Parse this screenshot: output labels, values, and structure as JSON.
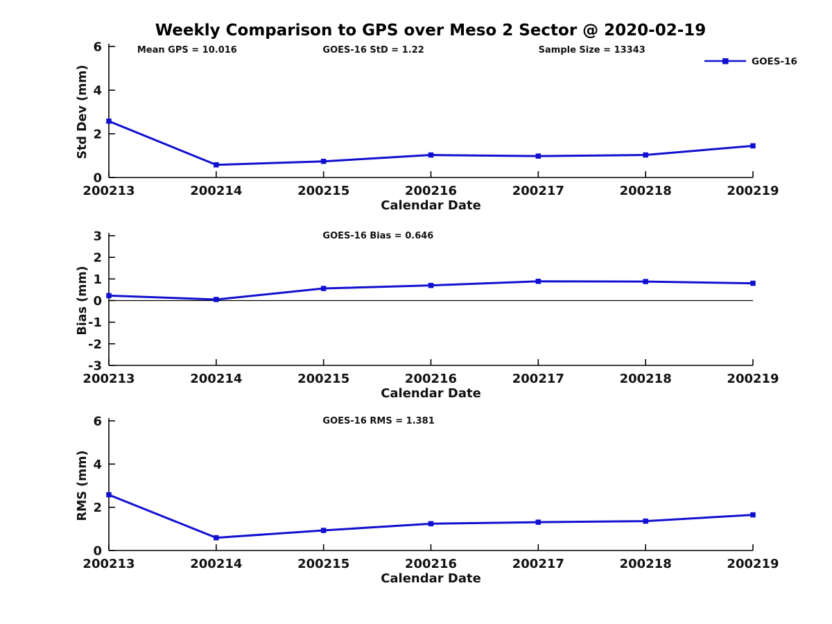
{
  "title": "Weekly Comparison to GPS over Meso 2 Sector @ 2020-02-19",
  "legend": {
    "label": "GOES-16",
    "position": "top-right"
  },
  "colors": {
    "series": "#1010d0",
    "axis": "#000000",
    "background": "#ffffff"
  },
  "chart_data": [
    {
      "type": "line",
      "title": "",
      "annotations": [
        "Mean GPS = 10.016",
        "GOES-16 StD = 1.22",
        "Sample Size = 13343"
      ],
      "categories": [
        "200213",
        "200214",
        "200215",
        "200216",
        "200217",
        "200218",
        "200219"
      ],
      "series": [
        {
          "name": "GOES-16",
          "values": [
            2.58,
            0.58,
            0.74,
            1.03,
            0.98,
            1.03,
            1.45
          ]
        }
      ],
      "xlabel": "Calendar Date",
      "ylabel": "Std Dev (mm)",
      "ylim": [
        0,
        6
      ],
      "yticks": [
        0,
        2,
        4,
        6
      ],
      "grid": false,
      "zero_line": false,
      "legend_position": "top-right",
      "marker": "square"
    },
    {
      "type": "line",
      "title": "",
      "annotations": [
        "GOES-16 Bias  = 0.646"
      ],
      "categories": [
        "200213",
        "200214",
        "200215",
        "200216",
        "200217",
        "200218",
        "200219"
      ],
      "series": [
        {
          "name": "GOES-16",
          "values": [
            0.23,
            0.05,
            0.56,
            0.7,
            0.89,
            0.88,
            0.8
          ]
        }
      ],
      "xlabel": "Calendar Date",
      "ylabel": "Bias (mm)",
      "ylim": [
        -3,
        3
      ],
      "yticks": [
        -3,
        -2,
        -1,
        0,
        1,
        2,
        3
      ],
      "grid": false,
      "zero_line": true,
      "legend_position": "none",
      "marker": "square"
    },
    {
      "type": "line",
      "title": "",
      "annotations": [
        "GOES-16 RMS = 1.381"
      ],
      "categories": [
        "200213",
        "200214",
        "200215",
        "200216",
        "200217",
        "200218",
        "200219"
      ],
      "series": [
        {
          "name": "GOES-16",
          "values": [
            2.58,
            0.59,
            0.93,
            1.24,
            1.31,
            1.36,
            1.65
          ]
        }
      ],
      "xlabel": "Calendar Date",
      "ylabel": "RMS (mm)",
      "ylim": [
        0,
        6
      ],
      "yticks": [
        0,
        2,
        4,
        6
      ],
      "grid": false,
      "zero_line": false,
      "legend_position": "none",
      "marker": "square"
    }
  ]
}
